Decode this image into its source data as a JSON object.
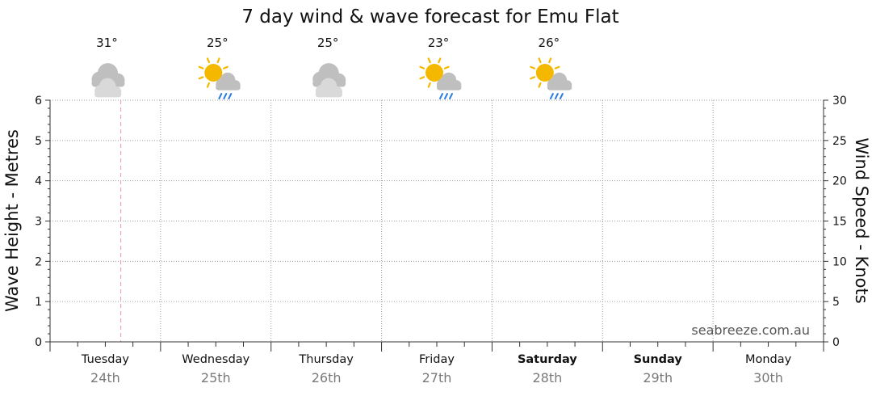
{
  "chart_data": {
    "type": "line",
    "title": "7 day wind & wave forecast for Emu Flat",
    "y_left_label": "Wave Height - Metres",
    "y_right_label": "Wind Speed - Knots",
    "y_left_ticks": [
      "0",
      "1",
      "2",
      "3",
      "4",
      "5",
      "6"
    ],
    "y_right_ticks": [
      "0",
      "5",
      "10",
      "15",
      "20",
      "25",
      "30"
    ],
    "y_left_range": [
      0,
      6
    ],
    "y_right_range": [
      0,
      30
    ],
    "grid": true,
    "days": [
      {
        "name": "Tuesday",
        "date": "24th",
        "bold": false,
        "temp": "31°",
        "icon": "cloudy-icon"
      },
      {
        "name": "Wednesday",
        "date": "25th",
        "bold": false,
        "temp": "25°",
        "icon": "sun-cloud-rain-icon"
      },
      {
        "name": "Thursday",
        "date": "26th",
        "bold": false,
        "temp": "25°",
        "icon": "cloudy-icon"
      },
      {
        "name": "Friday",
        "date": "27th",
        "bold": false,
        "temp": "23°",
        "icon": "sun-cloud-rain-icon"
      },
      {
        "name": "Saturday",
        "date": "28th",
        "bold": true,
        "temp": "26°",
        "icon": "sun-cloud-rain-icon"
      },
      {
        "name": "Sunday",
        "date": "29th",
        "bold": true,
        "temp": "",
        "icon": ""
      },
      {
        "name": "Monday",
        "date": "30th",
        "bold": false,
        "temp": "",
        "icon": ""
      }
    ],
    "series": [],
    "current_time_marker_day_fraction": 0.64,
    "watermark": "seabreeze.com.au"
  },
  "colors": {
    "grid": "#9a9a9a",
    "now_marker": "#e79aa6",
    "sun": "#f5b800",
    "rain": "#2b7de0",
    "cloud_dark": "#bfbfbf",
    "cloud_light": "#d9d9d9"
  }
}
